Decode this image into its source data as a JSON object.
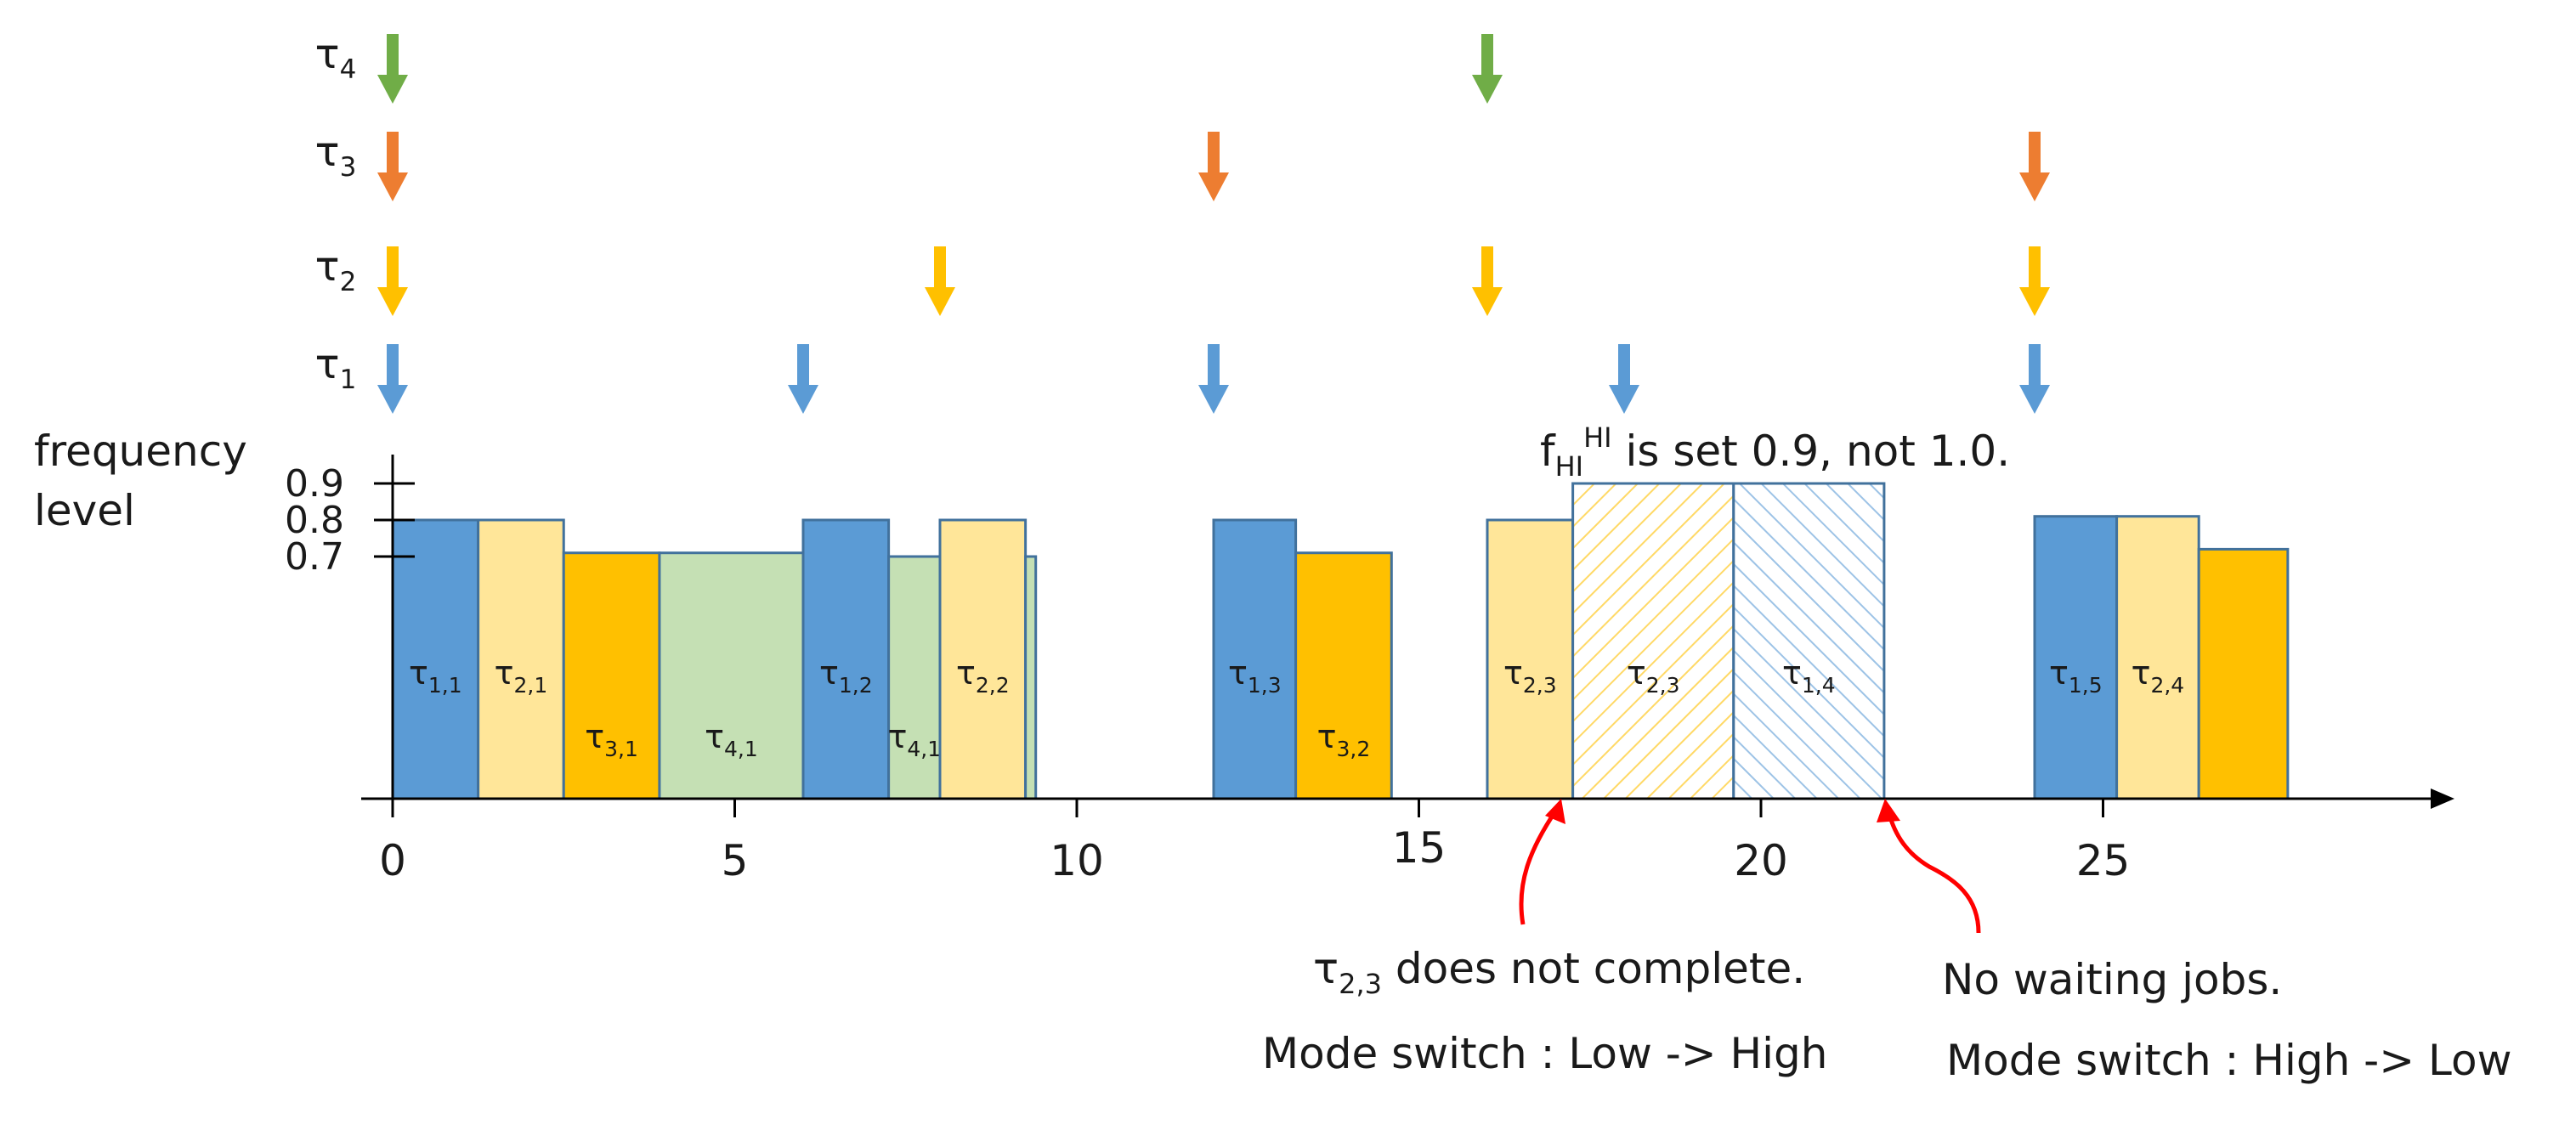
{
  "chart_data": {
    "type": "schedule-timeline",
    "x_ticks": [
      "0",
      "5",
      "10",
      "15",
      "20",
      "25"
    ],
    "y_axis": {
      "title_line1": "frequency",
      "title_line2": "level",
      "ticks": [
        {
          "label": "0.9",
          "value": 0.9
        },
        {
          "label": "0.8",
          "value": 0.8
        },
        {
          "label": "0.7",
          "value": 0.7
        }
      ]
    },
    "tasks": [
      {
        "id": "t4",
        "sym": "τ",
        "sub": "4",
        "color": "#70AD47",
        "releases": [
          0,
          16
        ]
      },
      {
        "id": "t3",
        "sym": "τ",
        "sub": "3",
        "color": "#ED7D31",
        "releases": [
          0,
          12,
          24
        ]
      },
      {
        "id": "t2",
        "sym": "τ",
        "sub": "2",
        "color": "#FFC000",
        "releases": [
          0,
          8,
          16,
          24
        ]
      },
      {
        "id": "t1",
        "sym": "τ",
        "sub": "1",
        "color": "#5B9BD5",
        "releases": [
          0,
          6,
          12,
          18,
          24
        ]
      }
    ],
    "jobs": [
      {
        "sub": "1,1",
        "start": 0.0,
        "end": 1.25,
        "freq": 0.8,
        "fill": "#5B9BD5",
        "label_pos": "mid"
      },
      {
        "sub": "2,1",
        "start": 1.25,
        "end": 2.5,
        "freq": 0.8,
        "fill": "#FFE699",
        "label_pos": "mid"
      },
      {
        "sub": "3,1",
        "start": 2.5,
        "end": 3.9,
        "freq": 0.71,
        "fill": "#FFC000",
        "label_pos": "low"
      },
      {
        "sub": "4,1",
        "start": 3.9,
        "end": 6.0,
        "freq": 0.71,
        "fill": "#C5E0B4",
        "label_pos": "low"
      },
      {
        "sub": "1,2",
        "start": 6.0,
        "end": 7.25,
        "freq": 0.8,
        "fill": "#5B9BD5",
        "label_pos": "mid"
      },
      {
        "sub": "4,1",
        "start": 7.25,
        "end": 8.0,
        "freq": 0.7,
        "fill": "#C5E0B4",
        "label_pos": "low"
      },
      {
        "sub": "2,2",
        "start": 8.0,
        "end": 9.25,
        "freq": 0.8,
        "fill": "#FFE699",
        "label_pos": "mid"
      },
      {
        "sub": "",
        "start": 9.25,
        "end": 9.4,
        "freq": 0.7,
        "fill": "#C5E0B4",
        "label_pos": "none"
      },
      {
        "sub": "1,3",
        "start": 12.0,
        "end": 13.2,
        "freq": 0.8,
        "fill": "#5B9BD5",
        "label_pos": "mid"
      },
      {
        "sub": "3,2",
        "start": 13.2,
        "end": 14.6,
        "freq": 0.71,
        "fill": "#FFC000",
        "label_pos": "low"
      },
      {
        "sub": "2,3",
        "start": 16.0,
        "end": 17.25,
        "freq": 0.8,
        "fill": "#FFE699",
        "label_pos": "mid"
      },
      {
        "sub": "2,3",
        "start": 17.25,
        "end": 19.6,
        "freq": 0.9,
        "fill": "hatch-yellow",
        "label_pos": "mid"
      },
      {
        "sub": "1,4",
        "start": 19.6,
        "end": 21.8,
        "freq": 0.9,
        "fill": "hatch-blue",
        "label_pos": "mid"
      },
      {
        "sub": "1,5",
        "start": 24.0,
        "end": 25.2,
        "freq": 0.81,
        "fill": "#5B9BD5",
        "label_pos": "mid"
      },
      {
        "sub": "2,4",
        "start": 25.2,
        "end": 26.4,
        "freq": 0.81,
        "fill": "#FFE699",
        "label_pos": "mid"
      },
      {
        "sub": "",
        "start": 26.4,
        "end": 27.7,
        "freq": 0.72,
        "fill": "#FFC000",
        "label_pos": "none"
      }
    ],
    "note_fhi": {
      "base": "f",
      "sub": "HI",
      "sup": "HI",
      "rest": " is set 0.9, not 1.0."
    },
    "annotations": [
      {
        "id": "mode-switch-low-high",
        "at": 17.25,
        "line1_prefix": "τ",
        "line1_sub": "2,3",
        "line1_rest": " does not complete.",
        "line2": "Mode switch : Low -> High"
      },
      {
        "id": "mode-switch-high-low",
        "at": 21.8,
        "line1": "No waiting jobs.",
        "line2": "Mode switch : High -> Low"
      }
    ],
    "colors": {
      "axis": "#000000",
      "outline": "#41719C",
      "annotation_arrow": "#FF0000",
      "hatch_yellow": "#FFD966",
      "hatch_blue": "#9DC3E6"
    }
  }
}
